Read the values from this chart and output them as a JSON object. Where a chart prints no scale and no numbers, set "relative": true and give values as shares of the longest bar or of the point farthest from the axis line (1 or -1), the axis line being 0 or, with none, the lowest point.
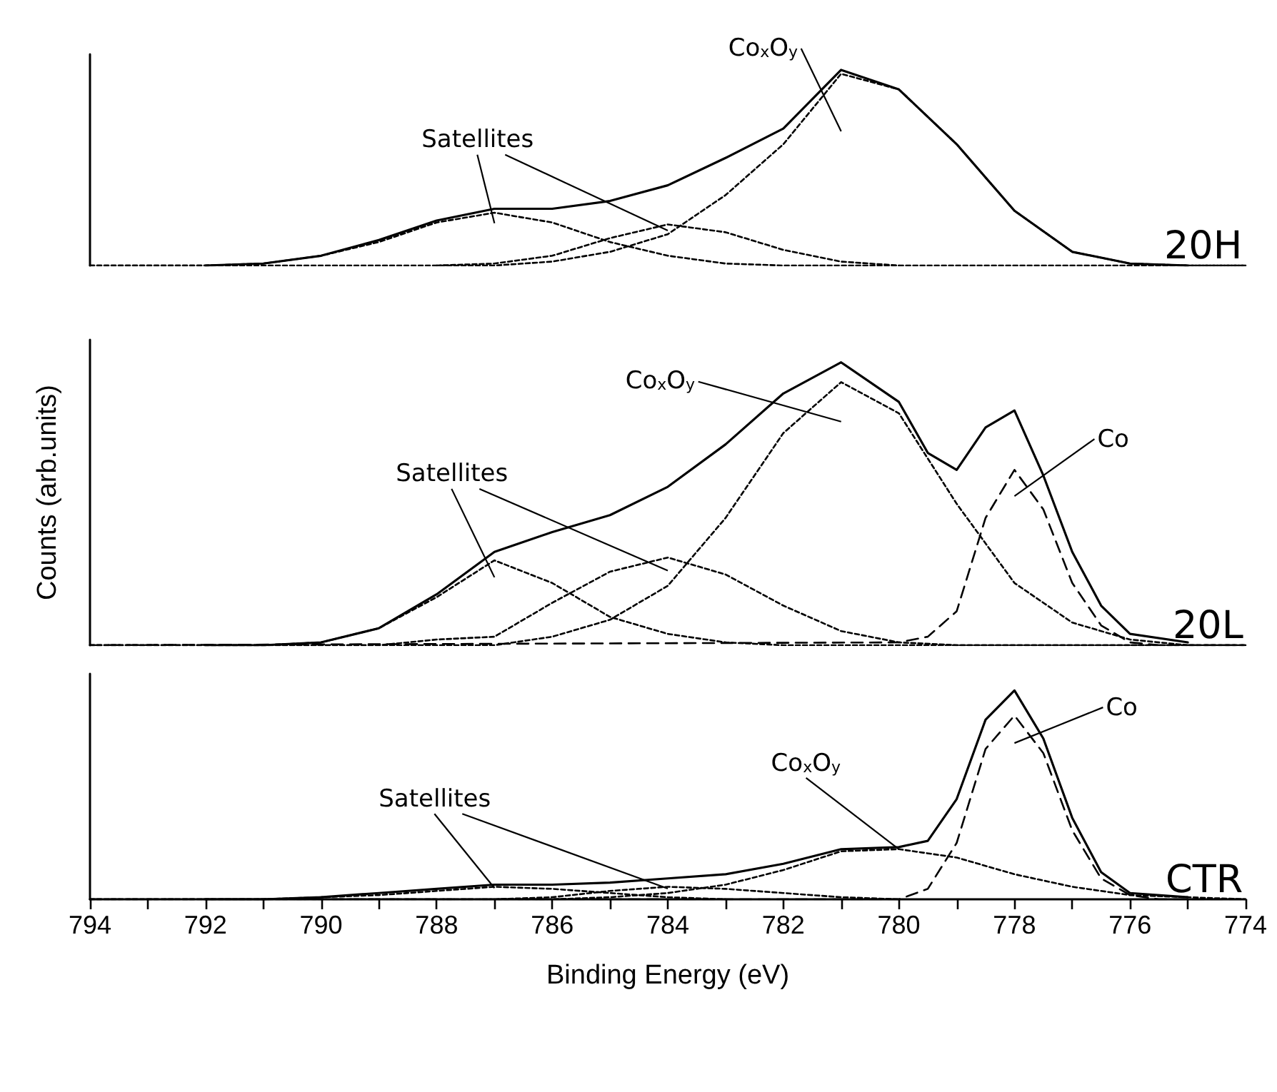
{
  "chart_data": [
    {
      "type": "line",
      "relative": true,
      "xlim": [
        794,
        774
      ],
      "tick_labels": false,
      "marker": "none",
      "x": [
        794,
        793,
        792,
        791,
        790,
        789,
        788,
        787,
        786,
        785,
        784,
        783,
        782,
        781,
        780,
        779,
        778,
        777,
        776,
        775,
        774
      ],
      "series": [
        {
          "color": "#000000",
          "line_style": "solid",
          "x": [
            792,
            791,
            790,
            789,
            788,
            787,
            786,
            785,
            784,
            783,
            782,
            781,
            780,
            779,
            778,
            777,
            776,
            775
          ],
          "values": [
            0,
            0.01,
            0.05,
            0.13,
            0.23,
            0.29,
            0.29,
            0.33,
            0.41,
            0.55,
            0.7,
            1.0,
            0.9,
            0.62,
            0.28,
            0.07,
            0.01,
            0
          ]
        },
        {
          "color": "#000000",
          "line_style": "dotted",
          "values": [
            0,
            0,
            0,
            0.01,
            0.05,
            0.12,
            0.22,
            0.27,
            0.22,
            0.12,
            0.05,
            0.01,
            0,
            0,
            0,
            0,
            0,
            0,
            0,
            0,
            0
          ]
        },
        {
          "color": "#000000",
          "line_style": "dotted",
          "values": [
            null,
            null,
            null,
            null,
            null,
            null,
            0,
            0.01,
            0.05,
            0.14,
            0.21,
            0.17,
            0.08,
            0.02,
            0,
            null,
            null,
            null,
            null,
            null,
            null
          ]
        },
        {
          "color": "#000000",
          "line_style": "dotted",
          "values": [
            0,
            0,
            0,
            0,
            0,
            0,
            0,
            0,
            0.02,
            0.07,
            0.16,
            0.36,
            0.62,
            0.98,
            0.9,
            0.62,
            0.28,
            0.07,
            0.01,
            0,
            0
          ]
        }
      ],
      "annotations": [
        "Co$_{x}$O$_{y}$",
        "Satellites",
        "20H"
      ]
    },
    {
      "type": "line",
      "relative": true,
      "xlim": [
        794,
        774
      ],
      "tick_labels": false,
      "marker": "none",
      "ylabel": "Counts (arb.units)",
      "x": [
        794,
        793,
        792,
        791,
        790,
        789,
        788,
        787,
        786,
        785,
        784,
        783,
        782,
        781,
        780,
        779,
        778,
        777,
        776,
        775,
        774
      ],
      "series": [
        {
          "color": "#000000",
          "line_style": "solid",
          "x": [
            792,
            791,
            790,
            789,
            788,
            787,
            786,
            785,
            784,
            783,
            782,
            781,
            780,
            779.5,
            779,
            778.5,
            778,
            777.5,
            777,
            776.5,
            776,
            775
          ],
          "values": [
            0,
            0,
            0.01,
            0.06,
            0.18,
            0.33,
            0.4,
            0.46,
            0.56,
            0.71,
            0.89,
            1.0,
            0.86,
            0.68,
            0.62,
            0.77,
            0.83,
            0.6,
            0.33,
            0.14,
            0.04,
            0.01
          ]
        },
        {
          "color": "#000000",
          "line_style": "dotted",
          "values": [
            0,
            0,
            0,
            0,
            0.01,
            0.06,
            0.17,
            0.3,
            0.22,
            0.1,
            0.04,
            0.01,
            0,
            0,
            0,
            0,
            0,
            0,
            0,
            0,
            0
          ]
        },
        {
          "color": "#000000",
          "line_style": "dotted",
          "values": [
            0,
            0,
            0,
            0,
            0,
            0,
            0.02,
            0.03,
            0.15,
            0.26,
            0.31,
            0.25,
            0.14,
            0.05,
            0.01,
            0,
            0,
            0,
            0,
            0,
            0
          ]
        },
        {
          "color": "#000000",
          "line_style": "dotted",
          "values": [
            0,
            0,
            0,
            0,
            0,
            0,
            0,
            0,
            0.03,
            0.09,
            0.21,
            0.45,
            0.75,
            0.93,
            0.82,
            0.5,
            0.22,
            0.08,
            0.02,
            0,
            0
          ]
        },
        {
          "color": "#000000",
          "line_style": "dashed",
          "x": [
            794,
            780,
            779.5,
            779,
            778.5,
            778,
            777.5,
            777,
            776.5,
            776,
            775.5,
            774
          ],
          "values": [
            0,
            0.01,
            0.03,
            0.12,
            0.45,
            0.62,
            0.48,
            0.22,
            0.07,
            0.01,
            0,
            0
          ]
        }
      ],
      "annotations": [
        "Co$_{x}$O$_{y}$",
        "Satellites",
        "Co",
        "20L"
      ]
    },
    {
      "type": "line",
      "relative": true,
      "xlim": [
        794,
        774
      ],
      "tick_labels": "x",
      "marker": "none",
      "xlabel": "Binding Energy (eV)",
      "xticks": [
        794,
        {
          "value": 793,
          "label": null
        },
        792,
        {
          "value": 791,
          "label": null
        },
        790,
        {
          "value": 789,
          "label": null
        },
        788,
        {
          "value": 787,
          "label": null
        },
        786,
        {
          "value": 785,
          "label": null
        },
        784,
        {
          "value": 783,
          "label": null
        },
        782,
        {
          "value": 781,
          "label": null
        },
        780,
        {
          "value": 779,
          "label": null
        },
        778,
        {
          "value": 777,
          "label": null
        },
        776,
        {
          "value": 775,
          "label": null
        },
        774
      ],
      "x": [
        794,
        793,
        792,
        791,
        790,
        789,
        788,
        787,
        786,
        785,
        784,
        783,
        782,
        781,
        780,
        779,
        778,
        777,
        776,
        775,
        774
      ],
      "series": [
        {
          "color": "#000000",
          "line_style": "solid",
          "x": [
            792,
            791,
            790,
            789,
            788,
            787,
            786,
            785,
            784,
            783,
            782,
            781,
            780,
            779.5,
            779,
            778.5,
            778,
            777.5,
            777,
            776.5,
            776,
            775
          ],
          "values": [
            0,
            0,
            0.01,
            0.03,
            0.05,
            0.07,
            0.07,
            0.08,
            0.1,
            0.12,
            0.17,
            0.24,
            0.25,
            0.28,
            0.48,
            0.86,
            1.0,
            0.77,
            0.39,
            0.13,
            0.03,
            0.01
          ]
        },
        {
          "color": "#000000",
          "line_style": "dotted",
          "values": [
            0,
            0,
            0,
            0,
            0.01,
            0.02,
            0.04,
            0.06,
            0.05,
            0.03,
            0.01,
            0,
            null,
            null,
            null,
            null,
            null,
            null,
            null,
            null,
            null
          ]
        },
        {
          "color": "#000000",
          "line_style": "dotted",
          "values": [
            null,
            null,
            null,
            null,
            null,
            null,
            null,
            0,
            0.01,
            0.04,
            0.06,
            0.05,
            0.03,
            0.01,
            0,
            null,
            null,
            null,
            null,
            null,
            null
          ]
        },
        {
          "color": "#000000",
          "line_style": "dotted",
          "values": [
            0,
            0,
            0,
            0,
            0,
            0,
            0,
            0,
            0,
            0.01,
            0.03,
            0.07,
            0.14,
            0.23,
            0.24,
            0.2,
            0.12,
            0.06,
            0.02,
            0.01,
            0
          ]
        },
        {
          "color": "#000000",
          "line_style": "dashed",
          "x": [
            794,
            780,
            779.5,
            779,
            778.5,
            778,
            777.5,
            777,
            776.5,
            776,
            775.5,
            774
          ],
          "values": [
            0,
            0,
            0.05,
            0.27,
            0.72,
            0.88,
            0.7,
            0.33,
            0.1,
            0.02,
            0,
            0
          ]
        }
      ],
      "annotations": [
        "Satellites",
        "Co$_{x}$O$_{y}$",
        "Co",
        "CTR"
      ]
    }
  ]
}
